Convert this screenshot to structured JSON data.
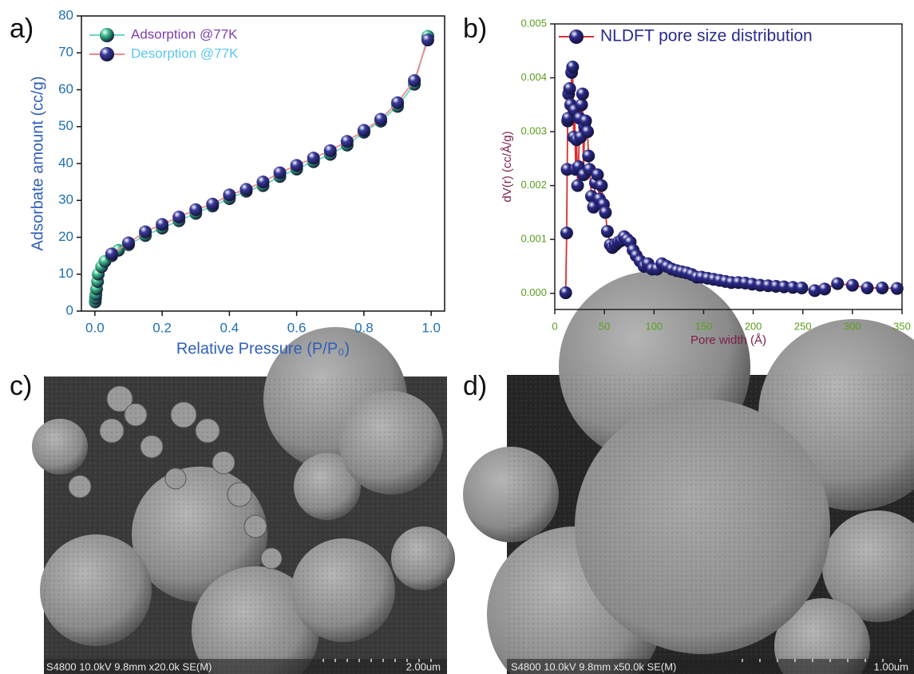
{
  "panel_labels": [
    "a)",
    "b)",
    "c)",
    "d)"
  ],
  "images": [
    {
      "caption": "S4800 10.0kV 9.8mm x20.0k SE(M)",
      "scale": "2.00um"
    },
    {
      "caption": "S4800 10.0kV 9.8mm x50.0k SE(M)",
      "scale": "1.00um"
    }
  ],
  "chart_data": [
    {
      "type": "line",
      "xlabel": "Relative Pressure (P/P₀)",
      "ylabel": "Adsorbate amount (cc/g)",
      "xlim": [
        -0.04,
        1.04
      ],
      "ylim": [
        0,
        80
      ],
      "xticks": [
        {
          "value": 0,
          "label": "0.0"
        },
        {
          "value": 0.2,
          "label": "0.2"
        },
        {
          "value": 0.4,
          "label": "0.4"
        },
        {
          "value": 0.6,
          "label": "0.6"
        },
        {
          "value": 0.8,
          "label": "0.8"
        },
        {
          "value": 1,
          "label": "1.0"
        }
      ],
      "yticks": [
        0,
        10,
        20,
        30,
        40,
        50,
        60,
        70,
        80
      ],
      "legend": "upper left",
      "series": [
        {
          "name": "Adsorption @77K",
          "color": "#3cbf8a",
          "line_color": "#6fd6c9",
          "x": [
            0.001,
            0.002,
            0.003,
            0.005,
            0.008,
            0.01,
            0.02,
            0.03,
            0.05,
            0.07,
            0.1,
            0.15,
            0.2,
            0.25,
            0.3,
            0.35,
            0.4,
            0.45,
            0.5,
            0.55,
            0.6,
            0.65,
            0.7,
            0.75,
            0.8,
            0.85,
            0.9,
            0.95,
            0.99
          ],
          "values": [
            2.5,
            3.5,
            4.5,
            6,
            8,
            10,
            12,
            13.5,
            15,
            16.5,
            18,
            20.5,
            22.5,
            24.5,
            26.5,
            28.5,
            30.5,
            32.5,
            34,
            36.5,
            38.5,
            40.5,
            42.5,
            45,
            48.5,
            51.5,
            55.5,
            61.5,
            74.5
          ]
        },
        {
          "name": "Desorption @77K",
          "color": "#3a3a9e",
          "line_color": "#f08a8a",
          "x": [
            0.99,
            0.95,
            0.9,
            0.85,
            0.8,
            0.75,
            0.7,
            0.65,
            0.6,
            0.55,
            0.5,
            0.45,
            0.4,
            0.35,
            0.3,
            0.25,
            0.2,
            0.15,
            0.1,
            0.05
          ],
          "values": [
            73.5,
            62.5,
            56.5,
            52,
            49,
            46,
            43.5,
            41.5,
            39.5,
            37.5,
            35,
            33,
            31.5,
            29,
            27.5,
            25.5,
            23.5,
            21.5,
            18.5,
            15.5
          ]
        }
      ]
    },
    {
      "type": "line",
      "xlabel": "Pore width (Å)",
      "ylabel": "dV(r) (cc/Å/g)",
      "xlim": [
        0,
        350
      ],
      "ylim": [
        -0.0003,
        0.005
      ],
      "xticks": [
        0,
        50,
        100,
        150,
        200,
        250,
        300,
        350
      ],
      "yticks": [
        {
          "value": 0,
          "label": "0.000"
        },
        {
          "value": 0.001,
          "label": "0.001"
        },
        {
          "value": 0.002,
          "label": "0.002"
        },
        {
          "value": 0.003,
          "label": "0.003"
        },
        {
          "value": 0.004,
          "label": "0.004"
        },
        {
          "value": 0.005,
          "label": "0.005"
        }
      ],
      "legend": "upper left",
      "series": [
        {
          "name": "NLDFT pore size distribution",
          "color": "#2b2b8c",
          "line_color": "#d83030",
          "x": [
            11,
            12,
            12.5,
            13,
            13.5,
            14,
            15,
            16,
            17,
            18,
            19,
            20,
            21,
            22,
            23,
            24,
            25,
            26,
            27,
            28,
            29,
            30,
            31,
            33,
            34,
            35,
            37,
            39,
            41,
            43,
            45,
            47,
            49,
            51,
            53,
            56,
            58,
            61,
            64,
            67,
            70,
            73,
            76,
            79,
            82,
            86,
            90,
            94,
            98,
            103,
            108,
            113,
            118,
            123,
            128,
            133,
            138,
            143,
            148,
            154,
            160,
            166,
            172,
            178,
            185,
            192,
            199,
            207,
            215,
            223,
            231,
            240,
            249,
            262,
            272,
            285,
            300,
            315,
            330,
            345
          ],
          "values": [
            1e-05,
            0.00112,
            0.0023,
            0.0032,
            0.00325,
            0.0037,
            0.0038,
            0.0035,
            0.0041,
            0.0042,
            0.0029,
            0.0034,
            0.0023,
            0.00285,
            0.002,
            0.00235,
            0.00325,
            0.0029,
            0.0035,
            0.0037,
            0.0022,
            0.0031,
            0.0032,
            0.003,
            0.00255,
            0.0023,
            0.0018,
            0.0016,
            0.00205,
            0.0022,
            0.00175,
            0.002,
            0.00165,
            0.0015,
            0.00115,
            0.0009,
            0.00085,
            0.0009,
            0.00095,
            0.00098,
            0.00105,
            0.001,
            0.00095,
            0.0008,
            0.0007,
            0.0006,
            0.0005,
            0.00055,
            0.00045,
            0.00045,
            0.00055,
            0.0005,
            0.00045,
            0.00042,
            0.0004,
            0.00038,
            0.00035,
            0.0003,
            0.0003,
            0.00028,
            0.00026,
            0.00024,
            0.00022,
            0.0002,
            0.0002,
            0.00019,
            0.00017,
            0.00015,
            0.00014,
            0.00013,
            0.00012,
            0.00011,
            0.0001,
            5e-05,
            8e-05,
            0.00018,
            0.00015,
            0.0001,
            0.0001,
            9e-05
          ]
        }
      ]
    }
  ]
}
